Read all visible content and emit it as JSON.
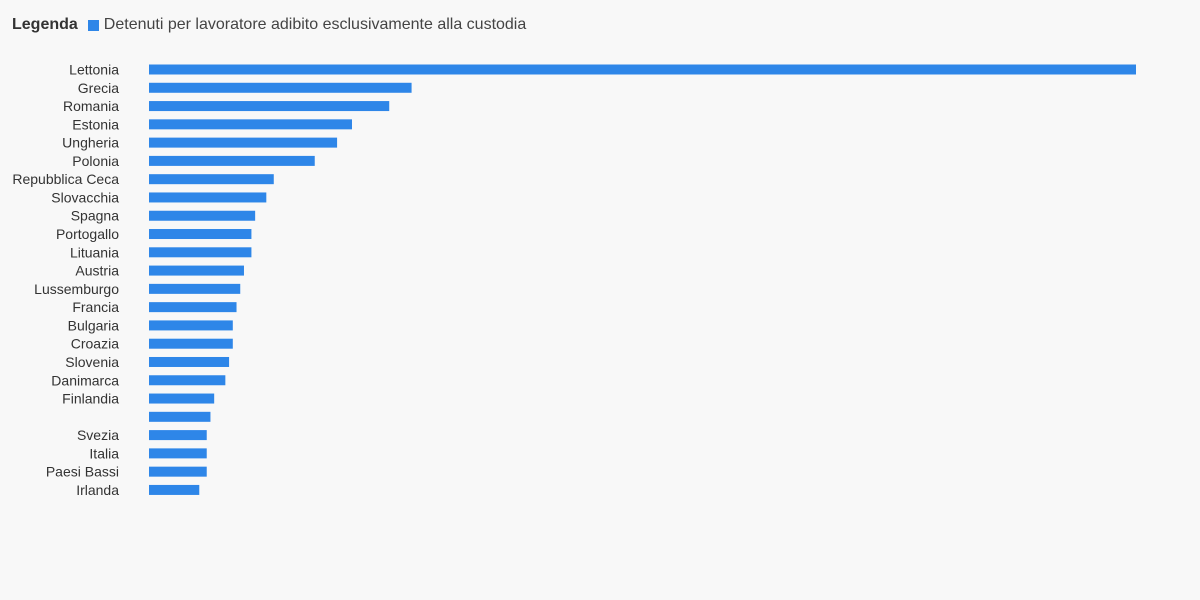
{
  "legend": {
    "title": "Legenda"
  },
  "colors": {
    "bar": "#2e86e8",
    "background": "#f8f8f8"
  },
  "chart_data": {
    "type": "bar",
    "orientation": "horizontal",
    "title": "",
    "xlabel": "",
    "ylabel": "",
    "grid": false,
    "legend_position": "top-left",
    "categories": [
      "Lettonia",
      "Grecia",
      "Romania",
      "Estonia",
      "Ungheria",
      "Polonia",
      "Repubblica Ceca",
      "Slovacchia",
      "Spagna",
      "Portogallo",
      "Lituania",
      "Austria",
      "Lussemburgo",
      "Francia",
      "Bulgaria",
      "Croazia",
      "Slovenia",
      "Danimarca",
      "Finlandia",
      "",
      "Svezia",
      "Italia",
      "Paesi Bassi",
      "Irlanda"
    ],
    "series": [
      {
        "name": "Detenuti per lavoratore adibito esclusivamente alla custodia",
        "values": [
          26.5,
          7.05,
          6.45,
          5.45,
          5.05,
          4.45,
          3.35,
          3.15,
          2.85,
          2.75,
          2.75,
          2.55,
          2.45,
          2.35,
          2.25,
          2.25,
          2.15,
          2.05,
          1.75,
          1.65,
          1.55,
          1.55,
          1.55,
          1.35
        ]
      }
    ],
    "xlim": [
      0,
      26.5
    ]
  }
}
